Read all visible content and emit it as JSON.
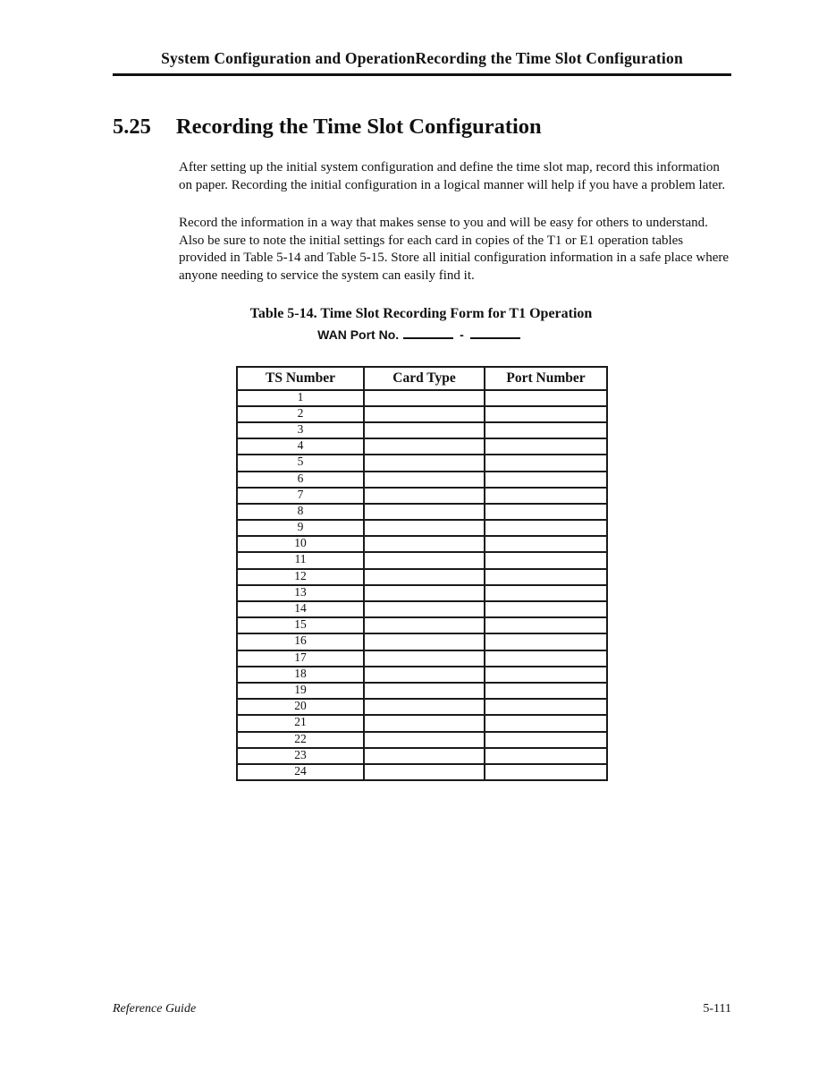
{
  "page": {
    "running_head": "System Configuration and OperationRecording the Time Slot Configuration",
    "section_number": "5.25",
    "section_title": "Recording the Time Slot Configuration",
    "paragraphs": [
      "After setting up the initial system configuration and define the time slot map, record this information on paper. Recording the initial configuration in a logical manner will help if you have a problem later.",
      "Record the information in a way that makes sense to you and will be easy for others to understand. Also be sure to note the initial settings for each card in copies of the T1 or E1 operation tables provided in Table 5-14 and Table 5-15. Store all initial configuration information in a safe place where anyone needing to service the system can easily find it."
    ],
    "table_caption": "Table 5-14. Time Slot Recording Form for T1 Operation",
    "wan_label": "WAN Port No.",
    "wan_separator": "-",
    "footer_left": "Reference Guide",
    "footer_right": "5-111"
  },
  "table": {
    "headers": [
      "TS Number",
      "Card Type",
      "Port Number"
    ],
    "rows": [
      [
        "1",
        "",
        ""
      ],
      [
        "2",
        "",
        ""
      ],
      [
        "3",
        "",
        ""
      ],
      [
        "4",
        "",
        ""
      ],
      [
        "5",
        "",
        ""
      ],
      [
        "6",
        "",
        ""
      ],
      [
        "7",
        "",
        ""
      ],
      [
        "8",
        "",
        ""
      ],
      [
        "9",
        "",
        ""
      ],
      [
        "10",
        "",
        ""
      ],
      [
        "11",
        "",
        ""
      ],
      [
        "12",
        "",
        ""
      ],
      [
        "13",
        "",
        ""
      ],
      [
        "14",
        "",
        ""
      ],
      [
        "15",
        "",
        ""
      ],
      [
        "16",
        "",
        ""
      ],
      [
        "17",
        "",
        ""
      ],
      [
        "18",
        "",
        ""
      ],
      [
        "19",
        "",
        ""
      ],
      [
        "20",
        "",
        ""
      ],
      [
        "21",
        "",
        ""
      ],
      [
        "22",
        "",
        ""
      ],
      [
        "23",
        "",
        ""
      ],
      [
        "24",
        "",
        ""
      ]
    ]
  },
  "colors": {
    "text": "#111111",
    "background": "#ffffff",
    "rule": "#111111"
  }
}
